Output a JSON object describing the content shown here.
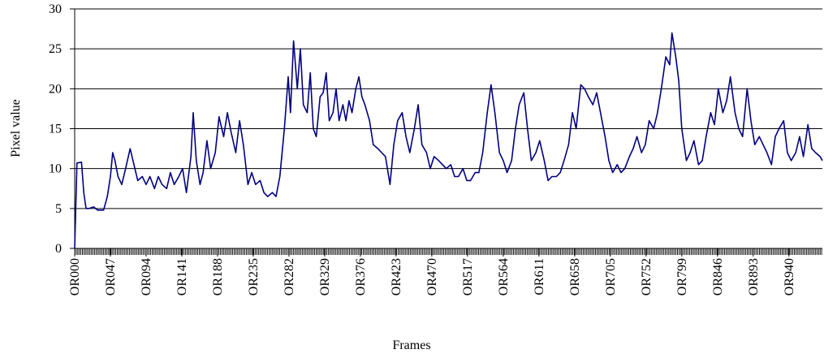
{
  "chart_data": {
    "type": "line",
    "x_label": "Frames",
    "y_label": "Pixel value",
    "color": "#000080",
    "x": [
      0,
      3,
      9,
      12,
      15,
      19,
      25,
      30,
      38,
      43,
      47,
      50,
      53,
      57,
      62,
      67,
      73,
      78,
      83,
      89,
      94,
      99,
      105,
      110,
      115,
      121,
      126,
      131,
      137,
      142,
      147,
      153,
      156,
      160,
      165,
      169,
      174,
      179,
      185,
      190,
      196,
      201,
      206,
      212,
      217,
      222,
      228,
      233,
      238,
      244,
      249,
      254,
      260,
      265,
      270,
      276,
      281,
      284,
      288,
      293,
      297,
      301,
      306,
      310,
      314,
      318,
      323,
      327,
      331,
      335,
      340,
      344,
      348,
      353,
      357,
      361,
      365,
      370,
      374,
      378,
      382,
      388,
      393,
      399,
      404,
      409,
      415,
      420,
      425,
      431,
      436,
      441,
      447,
      452,
      457,
      463,
      468,
      473,
      479,
      484,
      489,
      495,
      500,
      505,
      511,
      516,
      521,
      527,
      532,
      537,
      543,
      548,
      553,
      559,
      564,
      569,
      575,
      580,
      585,
      591,
      596,
      601,
      607,
      612,
      618,
      623,
      628,
      634,
      639,
      644,
      650,
      655,
      660,
      666,
      671,
      676,
      682,
      687,
      692,
      698,
      703,
      708,
      714,
      719,
      724,
      730,
      735,
      740,
      746,
      751,
      756,
      762,
      767,
      772,
      778,
      783,
      786,
      791,
      795,
      799,
      805,
      810,
      815,
      821,
      826,
      831,
      837,
      842,
      847,
      853,
      858,
      863,
      869,
      874,
      879,
      885,
      890,
      895,
      901,
      906,
      911,
      917,
      922,
      927,
      933,
      938,
      943,
      949,
      954,
      959,
      965,
      970,
      975,
      981,
      984
    ],
    "values": [
      0,
      10.7,
      10.8,
      7,
      5,
      5,
      5.2,
      4.8,
      4.8,
      6.5,
      9,
      12,
      11,
      9,
      8,
      10,
      12.5,
      10.5,
      8.5,
      9,
      8,
      9,
      7.5,
      9,
      8,
      7.5,
      9.5,
      8,
      9,
      10,
      7,
      11.5,
      17,
      11,
      8,
      9.5,
      13.5,
      10,
      12,
      16.5,
      14,
      17,
      14.5,
      12,
      16,
      13,
      8,
      9.5,
      8,
      8.5,
      7,
      6.5,
      7,
      6.5,
      9,
      15,
      21.5,
      17,
      26,
      20,
      25,
      18,
      17,
      22,
      15,
      14,
      19,
      19.5,
      22,
      16,
      17,
      20,
      16,
      18,
      16,
      18.5,
      17,
      20,
      21.5,
      19,
      18,
      16,
      13,
      12.5,
      12,
      11.5,
      8,
      13,
      16,
      17,
      14,
      12,
      15,
      18,
      13,
      12,
      10,
      11.5,
      11,
      10.5,
      10,
      10.5,
      9,
      9,
      10,
      8.5,
      8.5,
      9.5,
      9.5,
      12,
      17,
      20.5,
      17,
      12,
      11,
      9.5,
      11,
      15,
      18,
      19.5,
      15,
      11,
      12,
      13.5,
      11,
      8.5,
      9,
      9,
      9.5,
      11,
      13,
      17,
      15,
      20.5,
      20,
      19,
      18,
      19.5,
      17,
      14,
      11,
      9.5,
      10.5,
      9.5,
      10,
      11.5,
      12.5,
      14,
      12,
      13,
      16,
      15,
      17,
      20,
      24,
      23,
      27,
      24,
      21,
      15,
      11,
      12,
      13.5,
      10.5,
      11,
      14,
      17,
      15.5,
      20,
      17,
      18.5,
      21.5,
      17,
      15,
      14,
      20,
      16,
      13,
      14,
      13,
      12,
      10.5,
      14,
      15,
      16,
      12,
      11,
      12,
      14,
      11.5,
      15.5,
      12.5,
      12,
      11.5,
      11
    ],
    "xlim": [
      0,
      984
    ],
    "xticks": [
      {
        "value": 0,
        "label": "OR000"
      },
      {
        "value": 47,
        "label": "OR047"
      },
      {
        "value": 94,
        "label": "OR094"
      },
      {
        "value": 141,
        "label": "OR141"
      },
      {
        "value": 188,
        "label": "OR188"
      },
      {
        "value": 235,
        "label": "OR235"
      },
      {
        "value": 282,
        "label": "OR282"
      },
      {
        "value": 329,
        "label": "OR329"
      },
      {
        "value": 376,
        "label": "OR376"
      },
      {
        "value": 423,
        "label": "OR423"
      },
      {
        "value": 470,
        "label": "OR470"
      },
      {
        "value": 517,
        "label": "OR517"
      },
      {
        "value": 564,
        "label": "OR564"
      },
      {
        "value": 611,
        "label": "OR611"
      },
      {
        "value": 658,
        "label": "OR658"
      },
      {
        "value": 705,
        "label": "OR705"
      },
      {
        "value": 752,
        "label": "OR752"
      },
      {
        "value": 799,
        "label": "OR799"
      },
      {
        "value": 846,
        "label": "OR846"
      },
      {
        "value": 893,
        "label": "OR893"
      },
      {
        "value": 940,
        "label": "OR940"
      }
    ],
    "ylim": [
      0,
      30
    ],
    "yticks": [
      0,
      5,
      10,
      15,
      20,
      25,
      30
    ],
    "grid": true
  }
}
